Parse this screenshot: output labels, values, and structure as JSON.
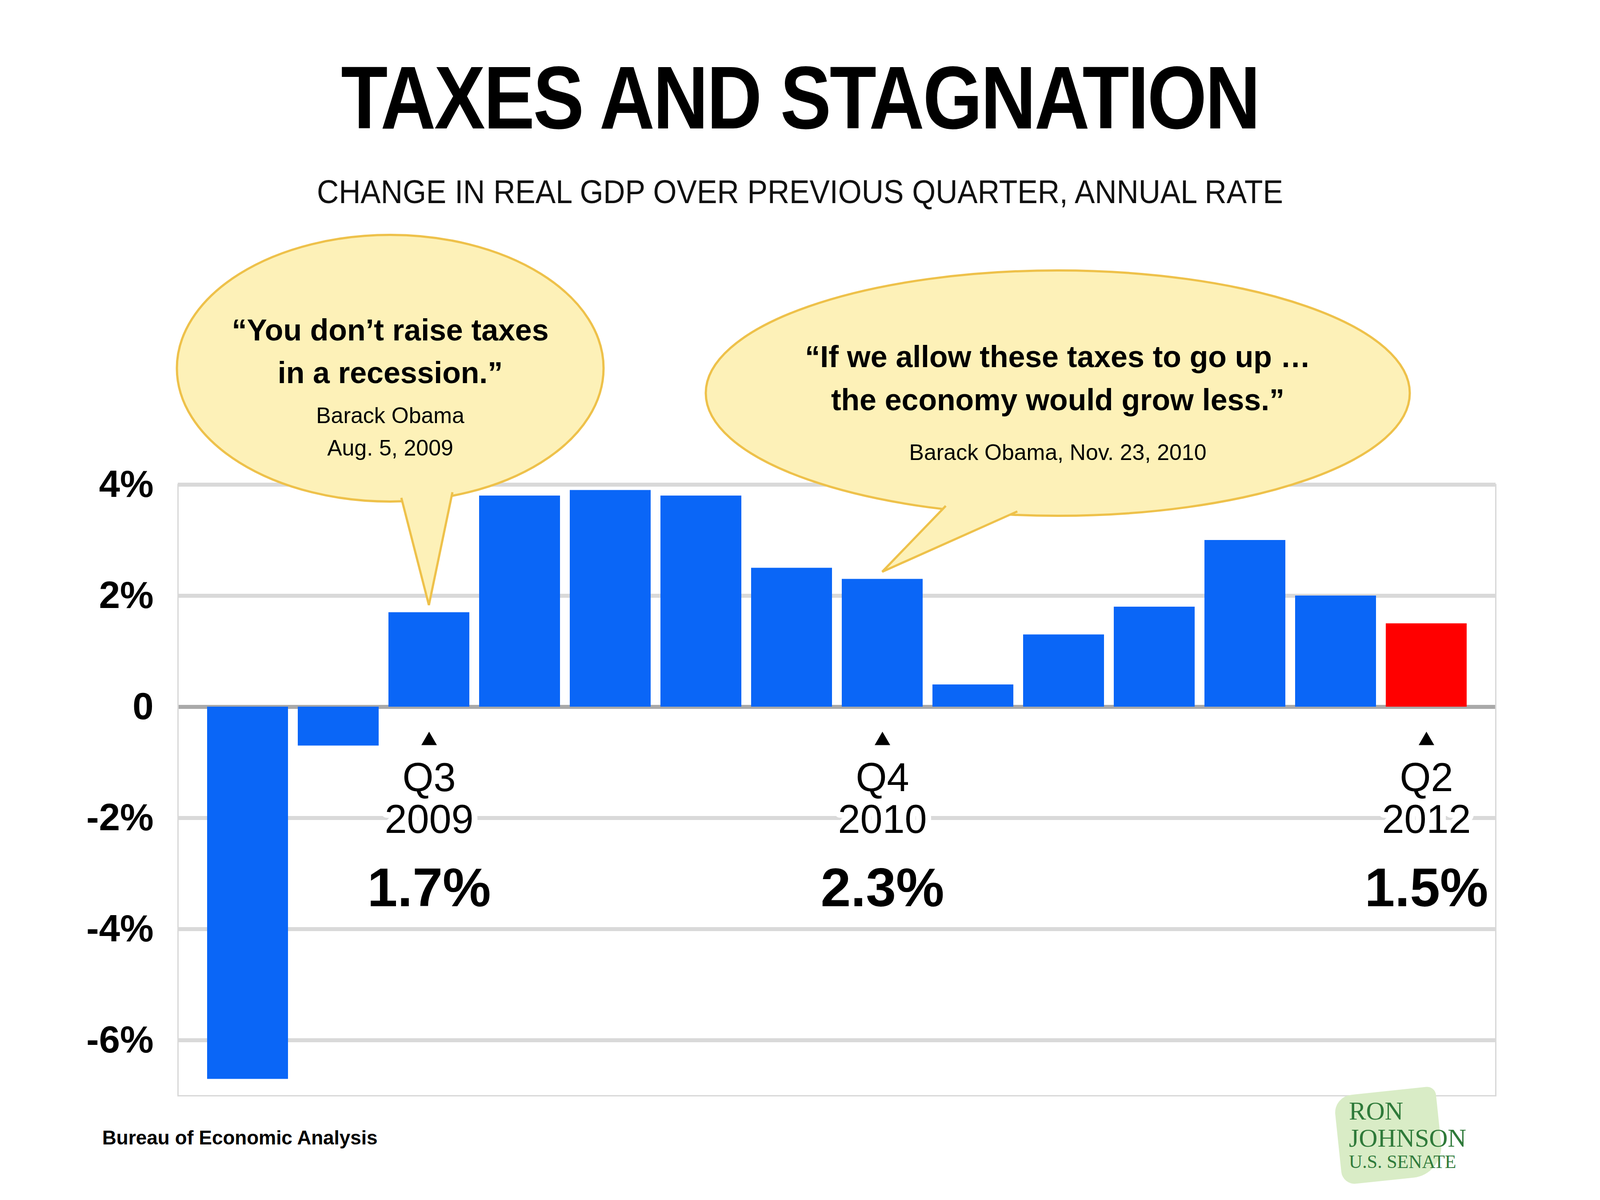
{
  "chart_data": {
    "type": "bar",
    "title": "TAXES AND STAGNATION",
    "subtitle": "CHANGE IN REAL GDP OVER PREVIOUS QUARTER, ANNUAL RATE",
    "categories": [
      null,
      null,
      "Q3\n2009",
      null,
      null,
      null,
      null,
      "Q4\n2010",
      null,
      null,
      null,
      null,
      null,
      "Q2\n2012"
    ],
    "values": [
      -6.7,
      -0.7,
      1.7,
      3.8,
      3.9,
      3.8,
      2.5,
      2.3,
      0.4,
      1.3,
      1.8,
      3.0,
      2.0,
      1.5
    ],
    "value_labels": [
      null,
      null,
      "1.7%",
      null,
      null,
      null,
      null,
      "2.3%",
      null,
      null,
      null,
      null,
      null,
      "1.5%"
    ],
    "data_labels": true,
    "colors": [
      "#0a66f7",
      "#0a66f7",
      "#0a66f7",
      "#0a66f7",
      "#0a66f7",
      "#0a66f7",
      "#0a66f7",
      "#0a66f7",
      "#0a66f7",
      "#0a66f7",
      "#0a66f7",
      "#0a66f7",
      "#0a66f7",
      "#ff0000"
    ],
    "ylim": [
      -7,
      4
    ],
    "yticks": [
      {
        "value": -6,
        "label": "-6%"
      },
      {
        "value": -4,
        "label": "-4%"
      },
      {
        "value": -2,
        "label": "-2%"
      },
      0,
      {
        "value": 2,
        "label": "2%"
      },
      {
        "value": 4,
        "label": "4%"
      }
    ],
    "grid": true,
    "annotations": [
      {
        "text": "“You don’t raise taxes\nin a recession.”",
        "source": "Barack Obama\nAug. 5, 2009",
        "category": "Q3\n2009"
      },
      {
        "text": "“If we allow these taxes to go up …\nthe economy would grow less.”",
        "source": "Barack Obama, Nov. 23, 2010",
        "category": "Q4\n2010"
      }
    ],
    "source": "Bureau of Economic Analysis",
    "logo": "RON\nJOHNSON\nU.S. SENATE"
  }
}
